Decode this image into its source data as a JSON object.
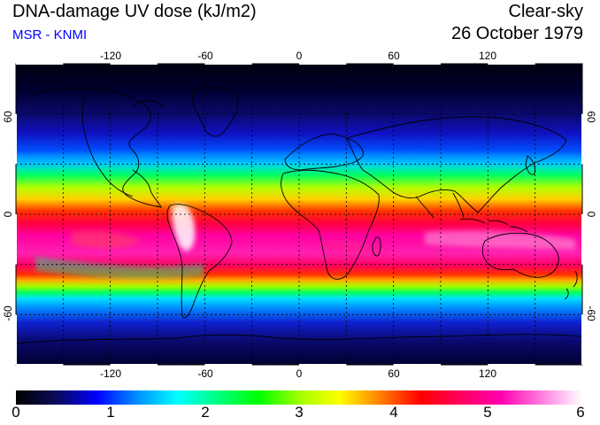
{
  "header": {
    "title": "DNA-damage UV dose (kJ/m2)",
    "subtitle": "MSR - KNMI",
    "condition": "Clear-sky",
    "date": "26 October 1979"
  },
  "map": {
    "lon_ticks": [
      "-120",
      "-60",
      "0",
      "60",
      "120"
    ],
    "lat_ticks_left": [
      "60",
      "0",
      "-60"
    ],
    "lat_ticks_right": [
      "60",
      "0",
      "-60"
    ]
  },
  "colorbar": {
    "labels": [
      "0",
      "1",
      "2",
      "3",
      "4",
      "5",
      "6"
    ],
    "min": 0,
    "max": 6,
    "colors": [
      "#000000",
      "#0a0a5a",
      "#0000ff",
      "#0090ff",
      "#00ffff",
      "#00ff80",
      "#00ff00",
      "#a0ff00",
      "#ffff00",
      "#ff8000",
      "#ff0000",
      "#ff0060",
      "#ff00b0",
      "#ff80e0",
      "#ffffff"
    ]
  }
}
